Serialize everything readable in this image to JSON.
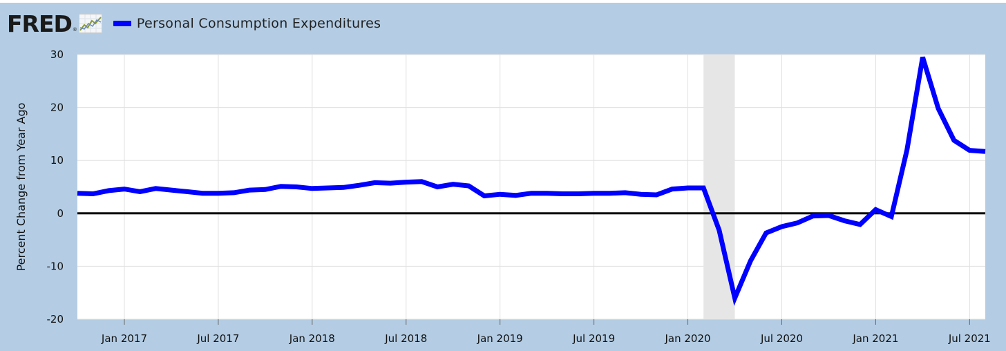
{
  "header": {
    "logo_text": "FRED",
    "logo_registered": "®",
    "logo_icon": "line-chart-icon",
    "legend_label": "Personal Consumption Expenditures",
    "legend_color": "#0000ff"
  },
  "colors": {
    "background": "#b4cde4",
    "plot_background": "#ffffff",
    "line": "#0000ff",
    "recession": "#e6e6e6",
    "zero_line": "#000000",
    "grid": "#e0e0e0"
  },
  "chart_data": {
    "type": "line",
    "title": "",
    "xlabel": "",
    "ylabel": "Percent Change from Year Ago",
    "ylim": [
      -20,
      30
    ],
    "yticks": [
      30,
      20,
      10,
      0,
      -10,
      -20
    ],
    "x_start": "2016-10",
    "x_end": "2021-08",
    "xticks": [
      {
        "date": "2017-01",
        "label": "Jan 2017"
      },
      {
        "date": "2017-07",
        "label": "Jul 2017"
      },
      {
        "date": "2018-01",
        "label": "Jan 2018"
      },
      {
        "date": "2018-07",
        "label": "Jul 2018"
      },
      {
        "date": "2019-01",
        "label": "Jan 2019"
      },
      {
        "date": "2019-07",
        "label": "Jul 2019"
      },
      {
        "date": "2020-01",
        "label": "Jan 2020"
      },
      {
        "date": "2020-07",
        "label": "Jul 2020"
      },
      {
        "date": "2021-01",
        "label": "Jan 2021"
      },
      {
        "date": "2021-07",
        "label": "Jul 2021"
      }
    ],
    "recession": {
      "start": "2020-02",
      "end": "2020-04"
    },
    "grid": true,
    "legend_position": "top-left",
    "series": [
      {
        "name": "Personal Consumption Expenditures",
        "color": "#0000ff",
        "x": [
          "2016-10",
          "2016-11",
          "2016-12",
          "2017-01",
          "2017-02",
          "2017-03",
          "2017-04",
          "2017-05",
          "2017-06",
          "2017-07",
          "2017-08",
          "2017-09",
          "2017-10",
          "2017-11",
          "2017-12",
          "2018-01",
          "2018-02",
          "2018-03",
          "2018-04",
          "2018-05",
          "2018-06",
          "2018-07",
          "2018-08",
          "2018-09",
          "2018-10",
          "2018-11",
          "2018-12",
          "2019-01",
          "2019-02",
          "2019-03",
          "2019-04",
          "2019-05",
          "2019-06",
          "2019-07",
          "2019-08",
          "2019-09",
          "2019-10",
          "2019-11",
          "2019-12",
          "2020-01",
          "2020-02",
          "2020-03",
          "2020-04",
          "2020-05",
          "2020-06",
          "2020-07",
          "2020-08",
          "2020-09",
          "2020-10",
          "2020-11",
          "2020-12",
          "2021-01",
          "2021-02",
          "2021-03",
          "2021-04",
          "2021-05",
          "2021-06",
          "2021-07",
          "2021-08"
        ],
        "values": [
          3.8,
          3.7,
          4.3,
          4.6,
          4.1,
          4.7,
          4.4,
          4.1,
          3.8,
          3.8,
          3.9,
          4.4,
          4.5,
          5.1,
          5.0,
          4.7,
          4.8,
          4.9,
          5.3,
          5.8,
          5.7,
          5.9,
          6.0,
          5.0,
          5.5,
          5.2,
          3.3,
          3.6,
          3.4,
          3.8,
          3.8,
          3.7,
          3.7,
          3.8,
          3.8,
          3.9,
          3.6,
          3.5,
          4.6,
          4.8,
          4.8,
          -3.2,
          -16.0,
          -9.0,
          -3.7,
          -2.5,
          -1.8,
          -0.5,
          -0.4,
          -1.4,
          -2.1,
          0.7,
          -0.6,
          12.0,
          29.5,
          19.8,
          13.8,
          11.9,
          11.7
        ]
      }
    ]
  }
}
